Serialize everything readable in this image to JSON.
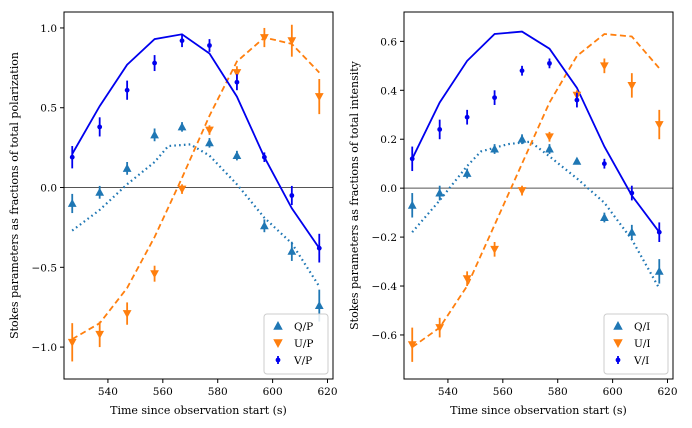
{
  "colors": {
    "q": "#1f77b4",
    "u": "#ff7f0e",
    "v": "#0000ee",
    "zero": "#555555"
  },
  "chart_data": [
    {
      "type": "scatter",
      "xlabel": "Time since observation start (s)",
      "ylabel": "Stokes parameters as fractions of total polarization",
      "xlim": [
        524,
        622
      ],
      "ylim": [
        -1.2,
        1.1
      ],
      "xticks": [
        540,
        560,
        580,
        600,
        620
      ],
      "xtick_labels": [
        "540",
        "560",
        "580",
        "600",
        "620"
      ],
      "yticks": [
        1.0,
        0.5,
        0.0,
        -0.5,
        -1.0
      ],
      "ytick_labels": [
        "1.0",
        "0.5",
        "0.0",
        "−0.5",
        "−1.0"
      ],
      "zero_line": 0,
      "legend_position": "lower-right",
      "series": [
        {
          "name": "Q/P",
          "color_key": "q",
          "marker": "triangle-up",
          "x": [
            527,
            537,
            547,
            557,
            567,
            577,
            587,
            597,
            607,
            617
          ],
          "y": [
            -0.1,
            -0.03,
            0.12,
            0.33,
            0.38,
            0.28,
            0.2,
            -0.24,
            -0.4,
            -0.74
          ],
          "err": [
            0.06,
            0.04,
            0.04,
            0.04,
            0.03,
            0.03,
            0.03,
            0.04,
            0.06,
            0.1
          ],
          "model": [
            -0.27,
            -0.14,
            0.02,
            0.16,
            0.26,
            0.27,
            0.2,
            0.02,
            -0.19,
            -0.35,
            -0.62
          ],
          "model_x": [
            527,
            537,
            547,
            557,
            562,
            570,
            577,
            587,
            597,
            607,
            617
          ],
          "model_style": "dotted"
        },
        {
          "name": "U/P",
          "color_key": "u",
          "marker": "triangle-down",
          "x": [
            527,
            537,
            547,
            557,
            567,
            577,
            587,
            597,
            607,
            617
          ],
          "y": [
            -0.97,
            -0.92,
            -0.79,
            -0.54,
            -0.01,
            0.36,
            0.72,
            0.94,
            0.92,
            0.57
          ],
          "err": [
            0.12,
            0.08,
            0.07,
            0.05,
            0.03,
            0.03,
            0.04,
            0.06,
            0.1,
            0.11
          ],
          "model": [
            -0.95,
            -0.85,
            -0.63,
            -0.31,
            0.06,
            0.45,
            0.79,
            0.94,
            0.9,
            0.72
          ],
          "model_x": [
            527,
            537,
            547,
            557,
            567,
            577,
            587,
            597,
            607,
            617
          ],
          "model_style": "dashed"
        },
        {
          "name": "V/P",
          "color_key": "v",
          "marker": "dot",
          "x": [
            527,
            537,
            547,
            557,
            567,
            577,
            587,
            597,
            607,
            617
          ],
          "y": [
            0.19,
            0.38,
            0.61,
            0.78,
            0.92,
            0.89,
            0.66,
            0.19,
            -0.05,
            -0.38
          ],
          "err": [
            0.07,
            0.06,
            0.06,
            0.05,
            0.04,
            0.04,
            0.05,
            0.03,
            0.06,
            0.09
          ],
          "model": [
            0.21,
            0.51,
            0.77,
            0.93,
            0.96,
            0.84,
            0.57,
            0.19,
            -0.13,
            -0.38
          ],
          "model_x": [
            527,
            537,
            547,
            557,
            567,
            577,
            587,
            597,
            607,
            617
          ],
          "model_style": "solid"
        }
      ]
    },
    {
      "type": "scatter",
      "xlabel": "Time since observation start (s)",
      "ylabel": "Stokes parameters as fractions of total intensity",
      "xlim": [
        524,
        622
      ],
      "ylim": [
        -0.78,
        0.72
      ],
      "xticks": [
        540,
        560,
        580,
        600,
        620
      ],
      "xtick_labels": [
        "540",
        "560",
        "580",
        "600",
        "620"
      ],
      "yticks": [
        0.6,
        0.4,
        0.2,
        0.0,
        -0.2,
        -0.4,
        -0.6
      ],
      "ytick_labels": [
        "0.6",
        "0.4",
        "0.2",
        "0.0",
        "−0.2",
        "−0.4",
        "−0.6"
      ],
      "zero_line": 0,
      "legend_position": "lower-right",
      "series": [
        {
          "name": "Q/I",
          "color_key": "q",
          "marker": "triangle-up",
          "x": [
            527,
            537,
            547,
            557,
            567,
            577,
            587,
            597,
            607,
            617
          ],
          "y": [
            -0.07,
            -0.02,
            0.06,
            0.16,
            0.2,
            0.16,
            0.11,
            -0.12,
            -0.18,
            -0.34
          ],
          "err": [
            0.05,
            0.03,
            0.02,
            0.02,
            0.02,
            0.02,
            0.01,
            0.02,
            0.03,
            0.05
          ],
          "model": [
            -0.18,
            -0.05,
            0.09,
            0.15,
            0.18,
            0.19,
            0.13,
            0.04,
            -0.06,
            -0.21,
            -0.41
          ],
          "model_x": [
            527,
            537,
            547,
            552,
            562,
            570,
            577,
            587,
            597,
            607,
            617
          ],
          "model_style": "dotted"
        },
        {
          "name": "U/I",
          "color_key": "u",
          "marker": "triangle-down",
          "x": [
            527,
            537,
            547,
            557,
            567,
            577,
            587,
            597,
            607,
            617
          ],
          "y": [
            -0.64,
            -0.57,
            -0.37,
            -0.25,
            -0.01,
            0.21,
            0.38,
            0.5,
            0.42,
            0.26
          ],
          "err": [
            0.07,
            0.04,
            0.03,
            0.03,
            0.02,
            0.02,
            0.02,
            0.03,
            0.05,
            0.06
          ],
          "model": [
            -0.65,
            -0.57,
            -0.4,
            -0.15,
            0.1,
            0.35,
            0.54,
            0.63,
            0.62,
            0.49
          ],
          "model_x": [
            527,
            537,
            547,
            557,
            567,
            577,
            587,
            597,
            607,
            617
          ],
          "model_style": "dashed"
        },
        {
          "name": "V/I",
          "color_key": "v",
          "marker": "dot",
          "x": [
            527,
            537,
            547,
            557,
            567,
            577,
            587,
            597,
            607,
            617
          ],
          "y": [
            0.12,
            0.24,
            0.29,
            0.37,
            0.48,
            0.51,
            0.36,
            0.1,
            -0.02,
            -0.18
          ],
          "err": [
            0.05,
            0.04,
            0.03,
            0.03,
            0.02,
            0.02,
            0.03,
            0.02,
            0.03,
            0.04
          ],
          "model": [
            0.12,
            0.35,
            0.52,
            0.63,
            0.64,
            0.57,
            0.41,
            0.17,
            -0.03,
            -0.18
          ],
          "model_x": [
            527,
            537,
            547,
            557,
            567,
            577,
            587,
            597,
            607,
            617
          ],
          "model_style": "solid"
        }
      ]
    }
  ]
}
